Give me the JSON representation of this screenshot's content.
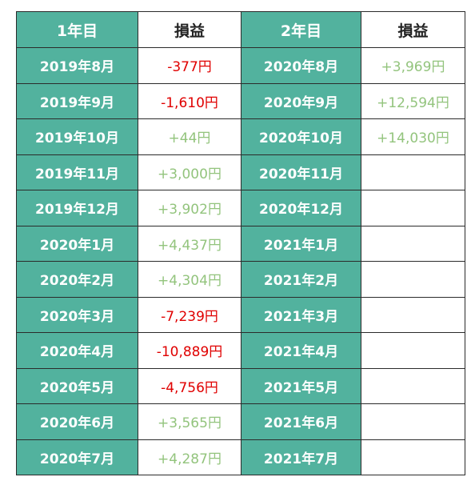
{
  "header": {
    "year1": "1年目",
    "pl1": "損益",
    "year2": "2年目",
    "pl2": "損益"
  },
  "colors": {
    "header_bg": "#52b29e",
    "negative": "#e00000",
    "positive": "#93c47d"
  },
  "rows": [
    {
      "m1": "2019年8月",
      "v1": "-377円",
      "s1": "neg",
      "m2": "2020年8月",
      "v2": "+3,969円",
      "s2": "pos"
    },
    {
      "m1": "2019年9月",
      "v1": "-1,610円",
      "s1": "neg",
      "m2": "2020年9月",
      "v2": "+12,594円",
      "s2": "pos"
    },
    {
      "m1": "2019年10月",
      "v1": "+44円",
      "s1": "pos",
      "m2": "2020年10月",
      "v2": "+14,030円",
      "s2": "pos"
    },
    {
      "m1": "2019年11月",
      "v1": "+3,000円",
      "s1": "pos",
      "m2": "2020年11月",
      "v2": "",
      "s2": "pos"
    },
    {
      "m1": "2019年12月",
      "v1": "+3,902円",
      "s1": "pos",
      "m2": "2020年12月",
      "v2": "",
      "s2": "pos"
    },
    {
      "m1": "2020年1月",
      "v1": "+4,437円",
      "s1": "pos",
      "m2": "2021年1月",
      "v2": "",
      "s2": "pos"
    },
    {
      "m1": "2020年2月",
      "v1": "+4,304円",
      "s1": "pos",
      "m2": "2021年2月",
      "v2": "",
      "s2": "pos"
    },
    {
      "m1": "2020年3月",
      "v1": "-7,239円",
      "s1": "neg",
      "m2": "2021年3月",
      "v2": "",
      "s2": "pos"
    },
    {
      "m1": "2020年4月",
      "v1": "-10,889円",
      "s1": "neg",
      "m2": "2021年4月",
      "v2": "",
      "s2": "pos"
    },
    {
      "m1": "2020年5月",
      "v1": "-4,756円",
      "s1": "neg",
      "m2": "2021年5月",
      "v2": "",
      "s2": "pos"
    },
    {
      "m1": "2020年6月",
      "v1": "+3,565円",
      "s1": "pos",
      "m2": "2021年6月",
      "v2": "",
      "s2": "pos"
    },
    {
      "m1": "2020年7月",
      "v1": "+4,287円",
      "s1": "pos",
      "m2": "2021年7月",
      "v2": "",
      "s2": "pos"
    }
  ]
}
